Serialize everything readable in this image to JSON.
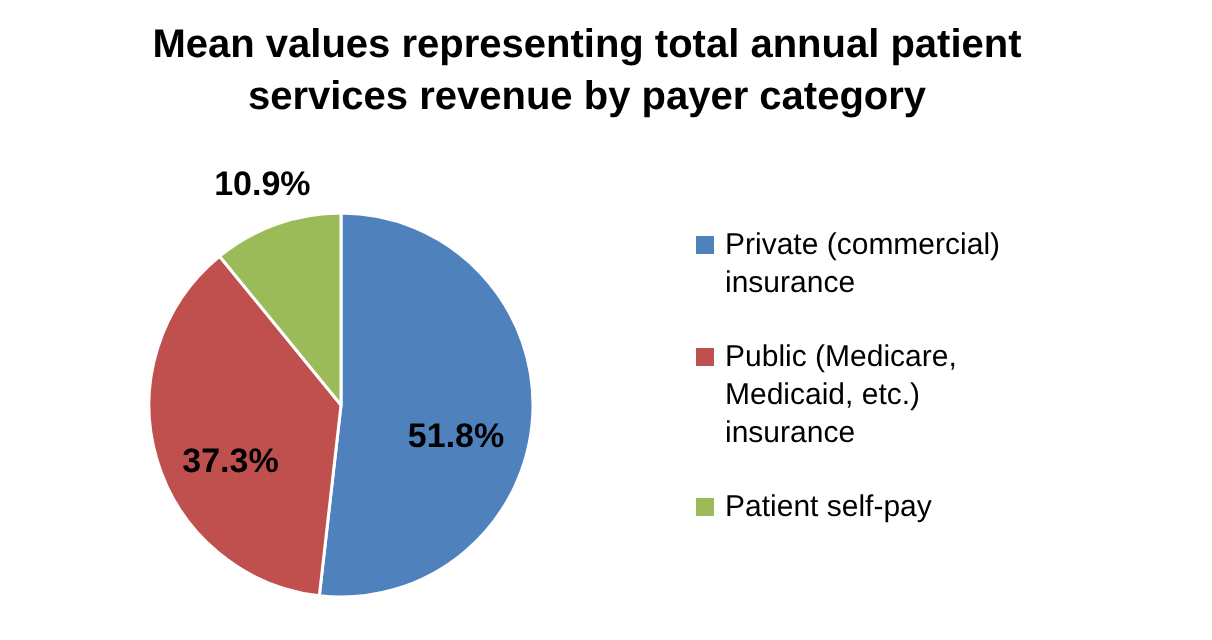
{
  "chart_data": {
    "type": "pie",
    "title": "Mean values representing total annual patient services revenue by payer category",
    "categories": [
      "Private (commercial) insurance",
      "Public (Medicare, Medicaid, etc.) insurance",
      "Patient self-pay"
    ],
    "values": [
      51.8,
      37.3,
      10.9
    ],
    "colors": [
      "#4f81bd",
      "#c0504d",
      "#9bbb59"
    ],
    "value_labels": [
      "51.8%",
      "37.3%",
      "10.9%"
    ],
    "legend": "right"
  }
}
